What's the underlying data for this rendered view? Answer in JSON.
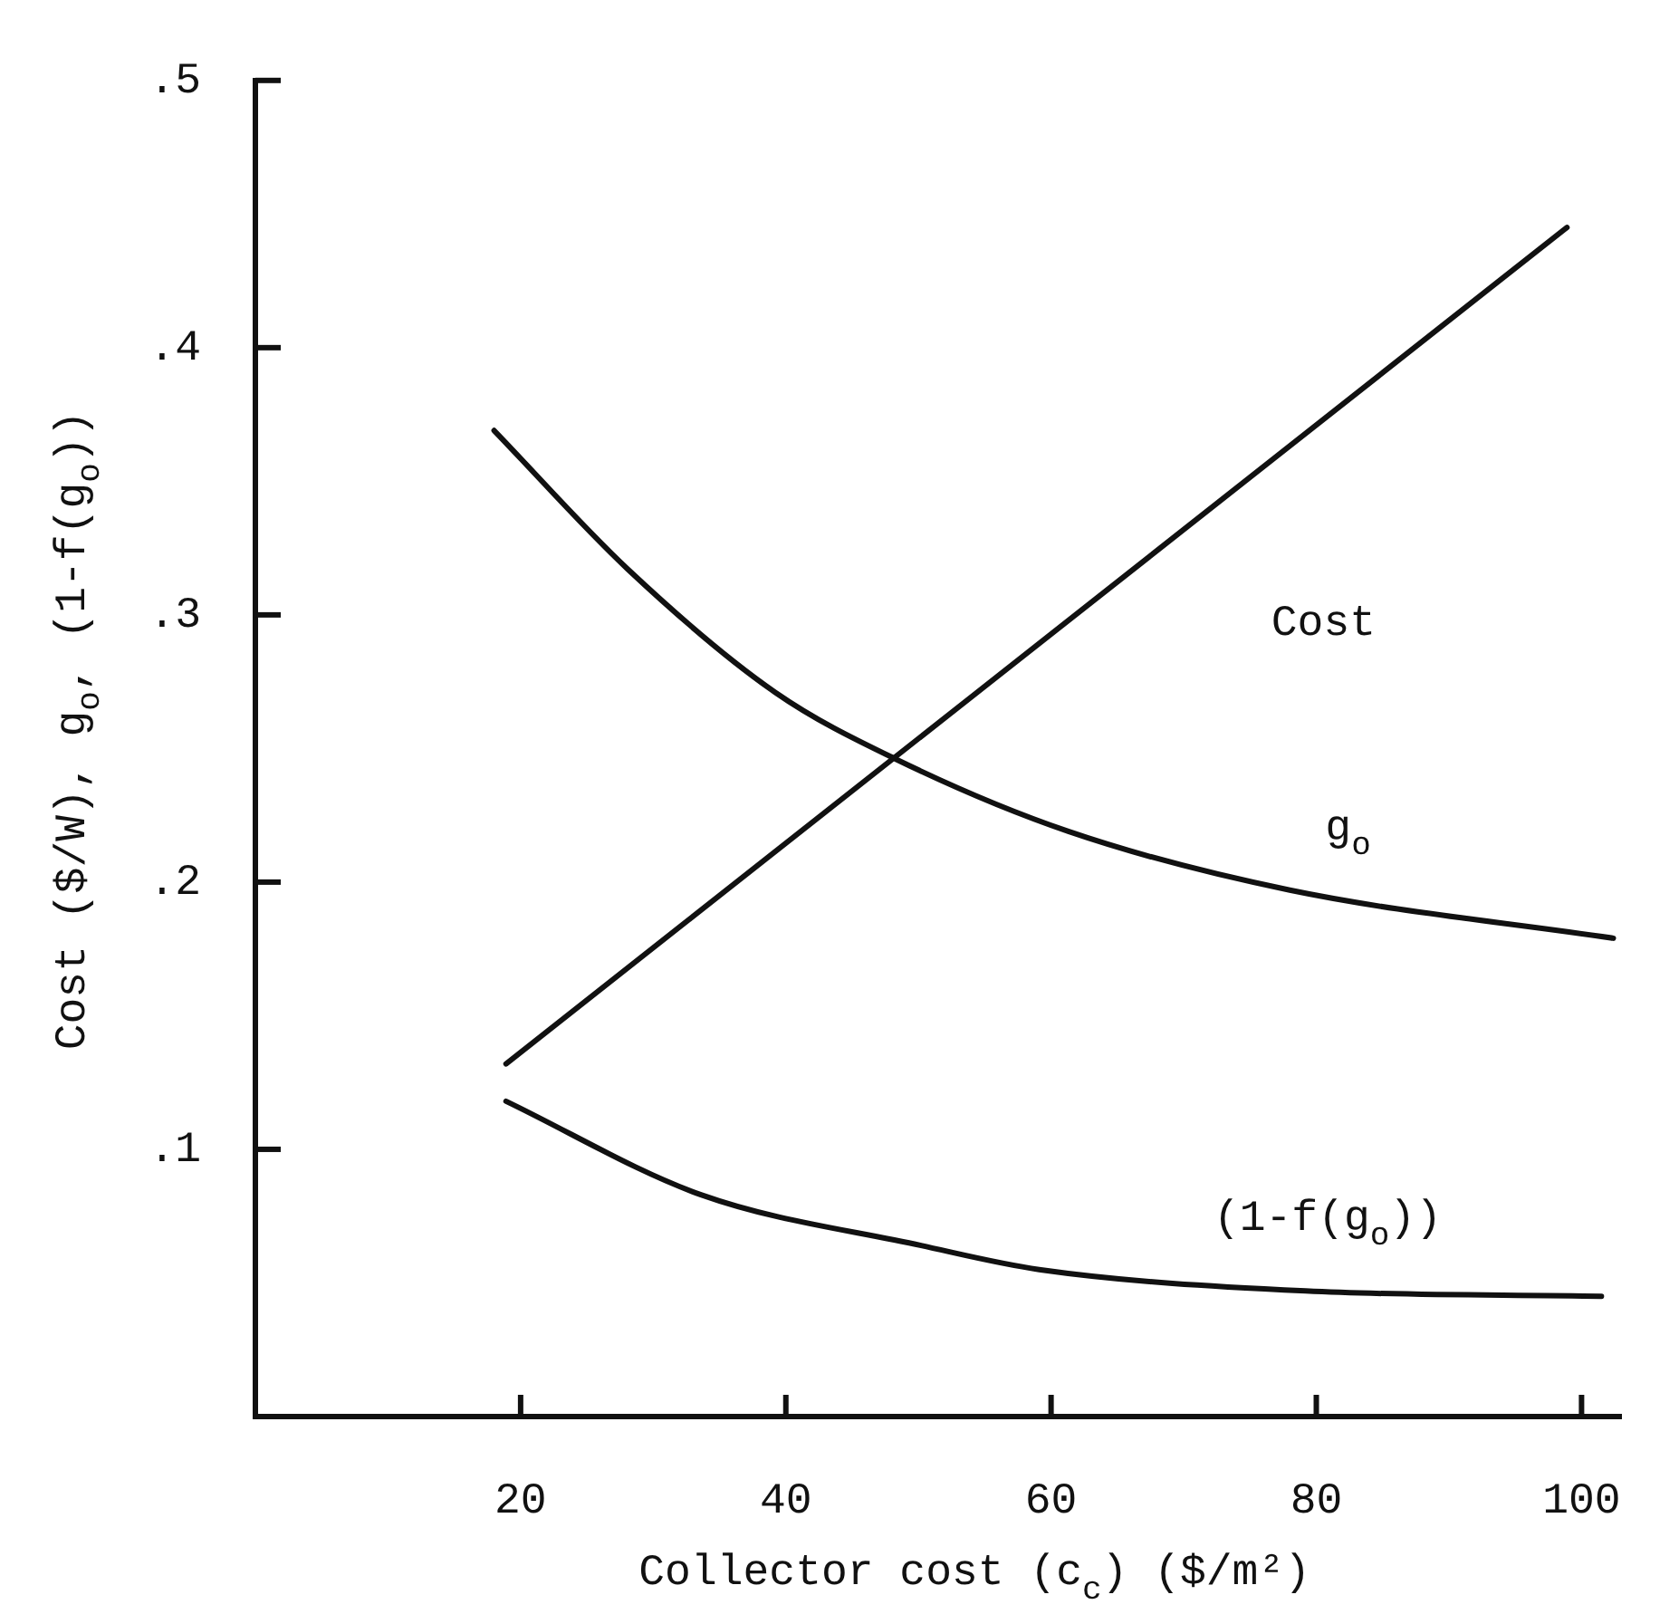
{
  "chart_data": {
    "type": "line",
    "xlabel": "Collector cost (c$_{c}$) ($/m²)",
    "ylabel": "Cost ($/W), g$_{o}$, (1-f(g$_{o}$))",
    "xlim": [
      0,
      103
    ],
    "xticks": [
      20,
      40,
      60,
      80,
      100
    ],
    "ylim": [
      0,
      0.5
    ],
    "yticks": [
      {
        "value": 0.1,
        "label": ".1"
      },
      {
        "value": 0.2,
        "label": ".2"
      },
      {
        "value": 0.3,
        "label": ".3"
      },
      {
        "value": 0.4,
        "label": ".4"
      },
      {
        "value": 0.5,
        "label": ".5"
      }
    ],
    "grid": false,
    "legend": false,
    "marker": "none",
    "line_style": "solid",
    "series": [
      {
        "name": "Cost",
        "color": "#111111",
        "x": [
          18.9,
          98.9
        ],
        "values": [
          0.132,
          0.445
        ]
      },
      {
        "name": "g$_{o}$",
        "color": "#111111",
        "x": [
          18,
          28.1,
          39.2,
          48.3,
          61.3,
          78,
          102.4
        ],
        "values": [
          0.369,
          0.317,
          0.271,
          0.246,
          0.219,
          0.197,
          0.179
        ]
      },
      {
        "name": "(1-f(g$_{o}$))",
        "color": "#111111",
        "x": [
          18.9,
          33.6,
          50.2,
          59.1,
          79.2,
          101.5
        ],
        "values": [
          0.118,
          0.083,
          0.064,
          0.055,
          0.047,
          0.045
        ]
      }
    ]
  }
}
